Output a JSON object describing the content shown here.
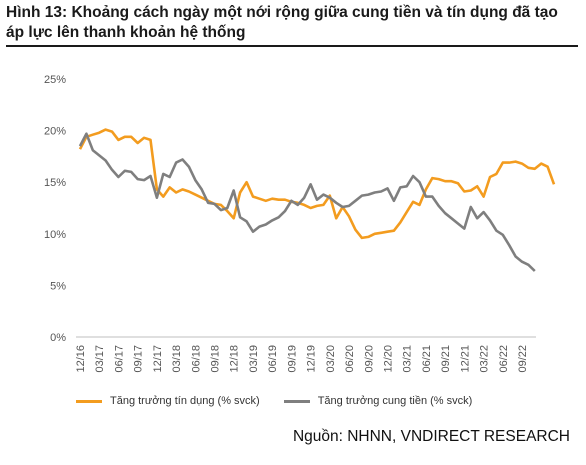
{
  "title": "Hình 13: Khoảng cách ngày một nới rộng giữa cung tiền và tín dụng đã tạo áp lực lên thanh khoản hệ thống",
  "source": "Nguồn: NHNN, VNDIRECT RESEARCH",
  "colors": {
    "credit": "#f39c1f",
    "money": "#7f7f7f",
    "axis": "#bfbfbf"
  },
  "chart_data": {
    "type": "line",
    "ylim": [
      0,
      25
    ],
    "yticks": [
      "0%",
      "5%",
      "10%",
      "15%",
      "20%",
      "25%"
    ],
    "ytick_values": [
      0,
      5,
      10,
      15,
      20,
      25
    ],
    "xticks": [
      "12/16",
      "03/17",
      "06/17",
      "09/17",
      "12/17",
      "03/18",
      "06/18",
      "09/18",
      "12/18",
      "03/19",
      "06/19",
      "09/19",
      "12/19",
      "03/20",
      "06/20",
      "09/20",
      "12/20",
      "03/21",
      "06/21",
      "09/21",
      "12/21",
      "03/22",
      "06/22",
      "09/22"
    ],
    "grid": false,
    "legend_position": "bottom",
    "series": [
      {
        "name": "Tăng trưởng tín dụng (% svck)",
        "values": [
          18.2,
          19.4,
          19.6,
          19.8,
          20.1,
          19.9,
          19.1,
          19.4,
          19.4,
          18.8,
          19.3,
          19.1,
          14.3,
          13.6,
          14.5,
          14.0,
          14.3,
          14.1,
          13.8,
          13.5,
          13.2,
          12.9,
          12.8,
          12.2,
          11.5,
          14.0,
          15.0,
          13.6,
          13.4,
          13.2,
          13.4,
          13.3,
          13.3,
          13.1,
          13.0,
          12.8,
          12.5,
          12.7,
          12.8,
          13.7,
          11.5,
          12.6,
          11.7,
          10.4,
          9.6,
          9.7,
          10.0,
          10.1,
          10.2,
          10.3,
          11.1,
          12.1,
          13.1,
          12.8,
          14.3,
          15.4,
          15.3,
          15.1,
          15.1,
          14.9,
          14.1,
          14.2,
          14.6,
          13.6,
          15.5,
          15.8,
          16.9,
          16.9,
          17.0,
          16.8,
          16.4,
          16.3,
          16.8,
          16.5,
          14.8
        ]
      },
      {
        "name": "Tăng trưởng cung tiền (% svck)",
        "values": [
          18.5,
          19.7,
          18.1,
          17.6,
          17.1,
          16.2,
          15.5,
          16.1,
          16.0,
          15.3,
          15.2,
          15.6,
          13.5,
          15.8,
          15.5,
          16.9,
          17.2,
          16.5,
          15.2,
          14.3,
          13.0,
          12.9,
          12.3,
          12.5,
          14.2,
          11.6,
          11.2,
          10.2,
          10.7,
          10.9,
          11.3,
          11.6,
          12.2,
          13.2,
          12.8,
          13.5,
          14.8,
          13.3,
          13.8,
          13.5,
          13.0,
          12.6,
          12.7,
          13.2,
          13.7,
          13.8,
          14.0,
          14.1,
          14.4,
          13.2,
          14.5,
          14.6,
          15.6,
          15.0,
          13.6,
          13.6,
          12.7,
          12.0,
          11.5,
          11.0,
          10.5,
          12.6,
          11.5,
          12.1,
          11.3,
          10.3,
          9.9,
          8.9,
          7.8,
          7.3,
          7.0,
          6.4
        ]
      }
    ]
  }
}
